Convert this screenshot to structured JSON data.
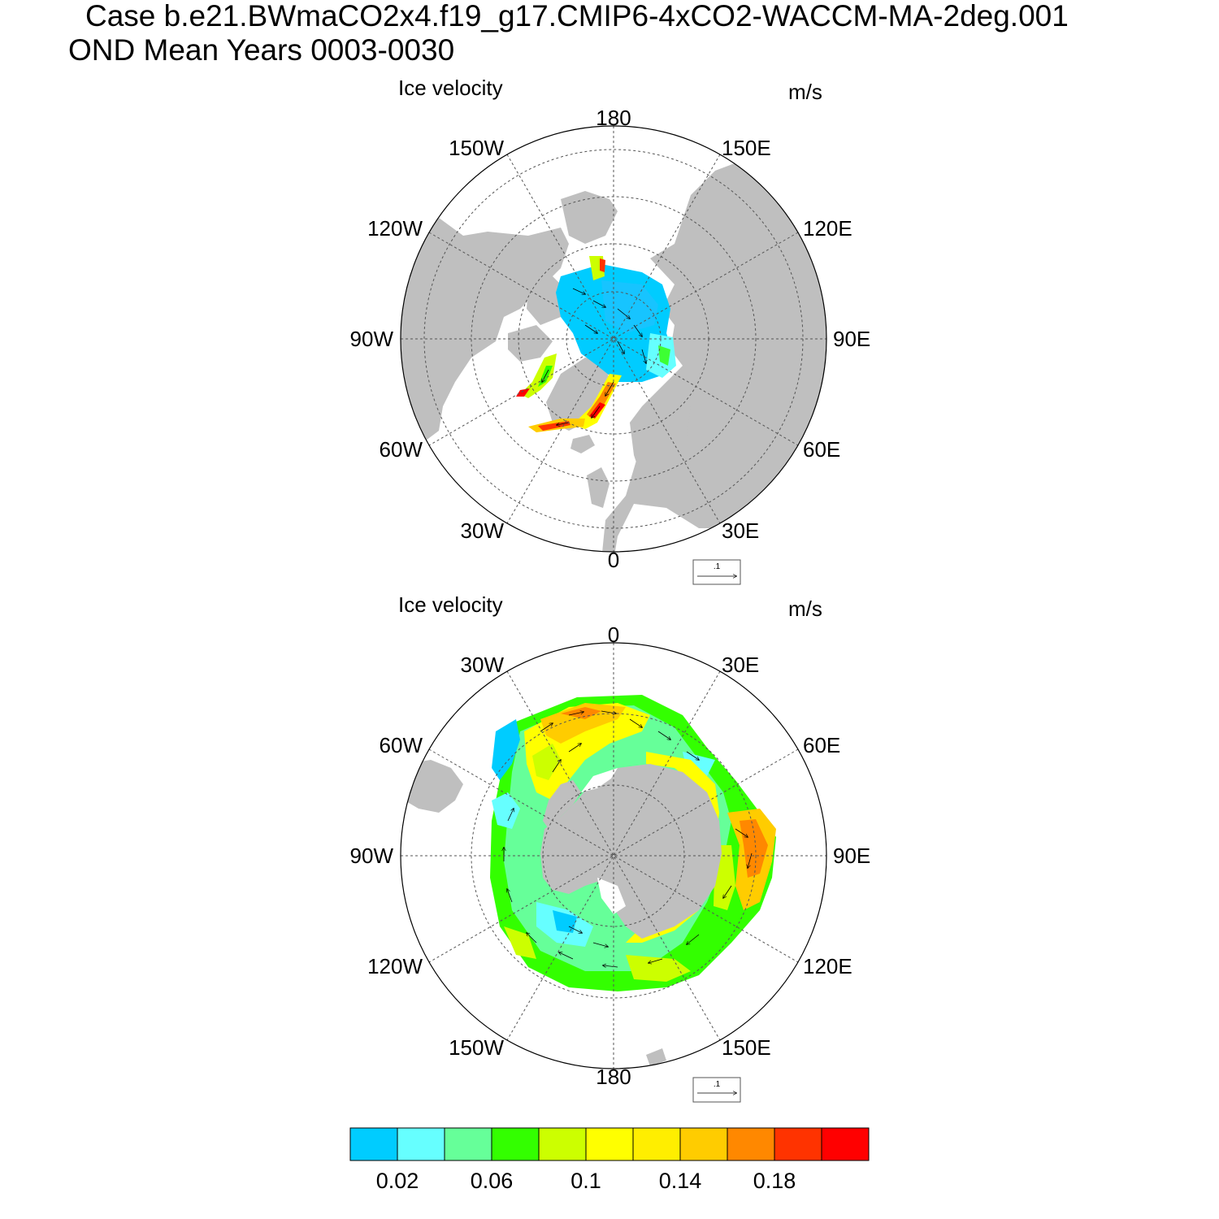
{
  "header": {
    "case_title": "Case b.e21.BWmaCO2x4.f19_g17.CMIP6-4xCO2-WACCM-MA-2deg.001",
    "subtitle": "OND Mean   Years 0003-0030"
  },
  "panels": [
    {
      "id": "north",
      "title": "Ice velocity",
      "units": "m/s",
      "lon_labels": [
        "180",
        "150E",
        "120E",
        "90E",
        "60E",
        "30E",
        "0",
        "30W",
        "60W",
        "90W",
        "120W",
        "150W"
      ],
      "ref_vector_label": ".1"
    },
    {
      "id": "south",
      "title": "Ice velocity",
      "units": "m/s",
      "lon_labels": [
        "0",
        "30E",
        "60E",
        "90E",
        "120E",
        "150E",
        "180",
        "150W",
        "120W",
        "90W",
        "60W",
        "30W"
      ],
      "ref_vector_label": ".1"
    }
  ],
  "colorbar": {
    "colors": [
      "#00ccff",
      "#66ffff",
      "#66ff99",
      "#33ff00",
      "#ccff00",
      "#ffff00",
      "#ffee00",
      "#ffcc00",
      "#ff8800",
      "#ff3300",
      "#ff0000"
    ],
    "tick_labels": [
      "0.02",
      "0.06",
      "0.1",
      "0.14",
      "0.18"
    ]
  },
  "colors": {
    "land": "#bfbfbf",
    "ocean": "#ffffff",
    "grid": "#555555"
  }
}
